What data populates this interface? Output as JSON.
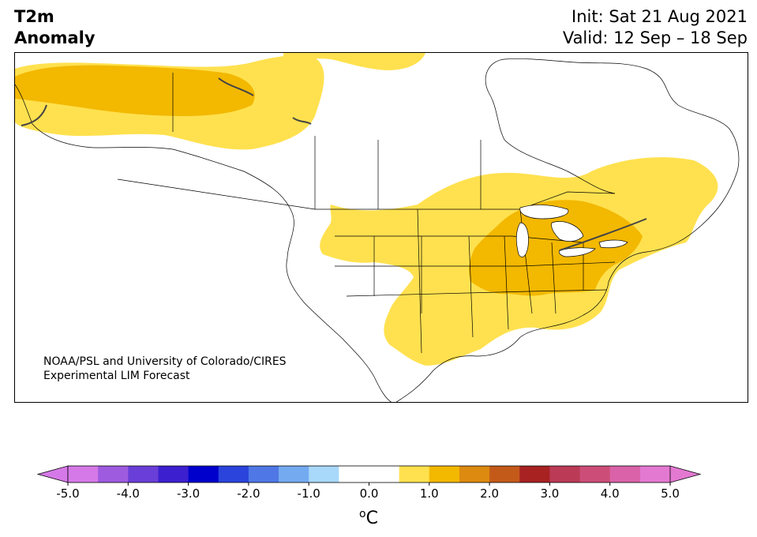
{
  "title": {
    "line1": "T2m",
    "line2": "Anomaly"
  },
  "dates": {
    "init": "Init: Sat 21 Aug 2021",
    "valid": "Valid: 12 Sep – 18 Sep"
  },
  "credit": {
    "line1": "NOAA/PSL and University of Colorado/CIRES",
    "line2": "Experimental LIM Forecast"
  },
  "colorbar": {
    "ticks": [
      "-5.0",
      "-4.0",
      "-3.0",
      "-2.0",
      "-1.0",
      "0.0",
      "1.0",
      "2.0",
      "3.0",
      "4.0",
      "5.0"
    ],
    "unit_sup": "o",
    "unit": "C",
    "colors": [
      "#d679e8",
      "#9e5be0",
      "#6a3ed8",
      "#3c20d0",
      "#0000cc",
      "#2a44dc",
      "#4f78e6",
      "#74aaf0",
      "#a8d8fa",
      "#ffffff",
      "#ffffff",
      "#ffe14f",
      "#f3b800",
      "#dd8a10",
      "#c45a1a",
      "#a82222",
      "#bb3a56",
      "#cc4e78",
      "#d962a8",
      "#e479d2"
    ],
    "extend_min_color": "#d679e8",
    "extend_max_color": "#e479d2"
  },
  "legend_colors": {
    "warm1": "#ffe14f",
    "warm2": "#f3b800"
  }
}
